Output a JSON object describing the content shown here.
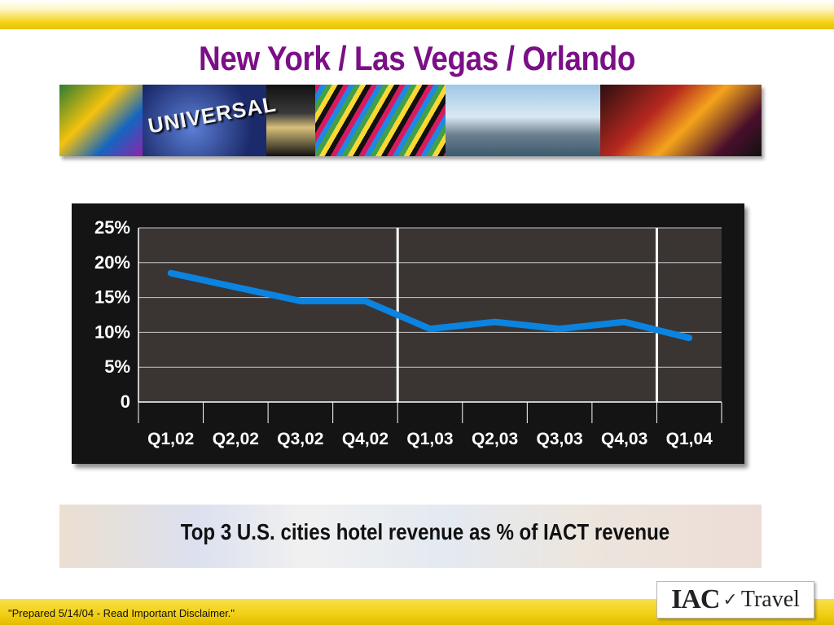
{
  "slide": {
    "title": "New York / Las Vegas / Orlando",
    "caption": "Top 3 U.S. cities hotel revenue as % of IACT revenue",
    "footer_note": "\"Prepared 5/14/04 - Read Important Disclaimer.\"",
    "logo": {
      "iac": "IAC",
      "travel": "Travel"
    },
    "photo_strip_text": "UNIVERSAL"
  },
  "colors": {
    "title": "#7b0f86",
    "line": "#0a84e0",
    "plot_bg": "#3a3433",
    "panel_bg": "#141414",
    "grid": "#c8c8c8"
  },
  "chart_data": {
    "type": "line",
    "title": "",
    "xlabel": "",
    "ylabel": "",
    "categories": [
      "Q1,02",
      "Q2,02",
      "Q3,02",
      "Q4,02",
      "Q1,03",
      "Q2,03",
      "Q3,03",
      "Q4,03",
      "Q1,04"
    ],
    "series": [
      {
        "name": "",
        "values": [
          18.5,
          16.5,
          14.5,
          14.5,
          10.5,
          11.5,
          10.5,
          11.5,
          9.2
        ]
      }
    ],
    "ylim": [
      0,
      25
    ],
    "yticks": [
      0,
      5,
      10,
      15,
      20,
      25
    ],
    "ytick_labels": [
      "0",
      "5%",
      "10%",
      "15%",
      "20%",
      "25%"
    ],
    "year_separators_after": [
      "Q4,02",
      "Q4,03"
    ],
    "grid": true,
    "legend": "none"
  }
}
